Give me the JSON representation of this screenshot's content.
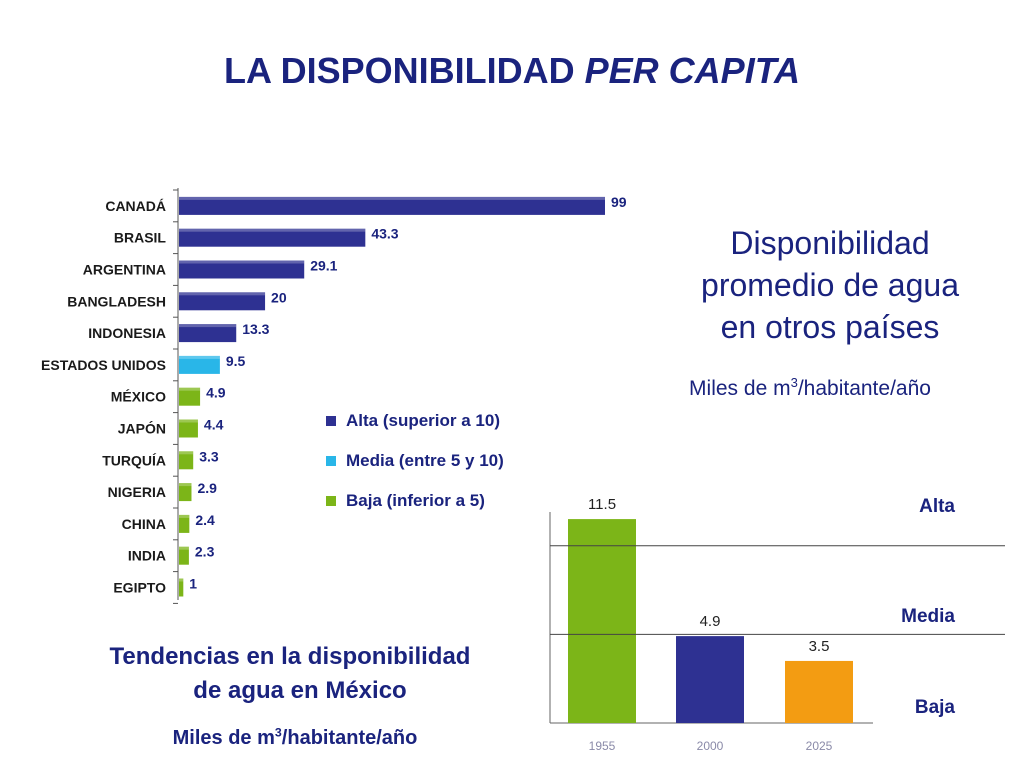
{
  "title_main": "LA DISPONIBILIDAD ",
  "title_italic": "PER CAPITA",
  "panel1": {
    "label_lines": [
      "Disponibilidad",
      "promedio de agua",
      "en otros países"
    ],
    "units_prefix": "Miles de m",
    "units_sup": "3",
    "units_suffix": "/habitante/año"
  },
  "panel2": {
    "label_lines": [
      "Tendencias en la disponibilidad",
      "de agua en México"
    ],
    "units_prefix": "Miles de m",
    "units_sup": "3",
    "units_suffix": "/habitante/año"
  },
  "colors": {
    "alta": "#2e3192",
    "media": "#29b6e8",
    "baja": "#7cb518",
    "orange": "#f39c12",
    "title": "#1a237e"
  },
  "chart_data": [
    {
      "type": "bar",
      "orientation": "horizontal",
      "categories": [
        "CANADÁ",
        "BRASIL",
        "ARGENTINA",
        "BANGLADESH",
        "INDONESIA",
        "ESTADOS UNIDOS",
        "MÉXICO",
        "JAPÓN",
        "TURQUÍA",
        "NIGERIA",
        "CHINA",
        "INDIA",
        "EGIPTO"
      ],
      "values": [
        99,
        43.3,
        29.1,
        20,
        13.3,
        9.5,
        4.9,
        4.4,
        3.3,
        2.9,
        2.4,
        2.3,
        1
      ],
      "value_labels": [
        "99",
        "43.3",
        "29.1",
        "20",
        "13.3",
        "9.5",
        "4.9",
        "4.4",
        "3.3",
        "2.9",
        "2.4",
        "2.3",
        "1"
      ],
      "groups": [
        "alta",
        "alta",
        "alta",
        "alta",
        "alta",
        "media",
        "baja",
        "baja",
        "baja",
        "baja",
        "baja",
        "baja",
        "baja"
      ],
      "legend": [
        {
          "key": "alta",
          "label": "Alta (superior a 10)"
        },
        {
          "key": "media",
          "label": "Media (entre 5 y 10)"
        },
        {
          "key": "baja",
          "label": "Baja (inferior a 5)"
        }
      ],
      "xlim": [
        0,
        99
      ],
      "legend_position": "right"
    },
    {
      "type": "bar",
      "categories": [
        "1955",
        "2000",
        "2025"
      ],
      "values": [
        11.5,
        4.9,
        3.5
      ],
      "value_labels": [
        "11.5",
        "4.9",
        "3.5"
      ],
      "bar_colors": [
        "baja",
        "alta",
        "orange"
      ],
      "ylim": [
        0,
        11.9
      ],
      "thresholds": [
        {
          "label": "Alta",
          "value": 10
        },
        {
          "label": "Media",
          "value": 5
        },
        {
          "label": "Baja",
          "value": null
        }
      ]
    }
  ]
}
